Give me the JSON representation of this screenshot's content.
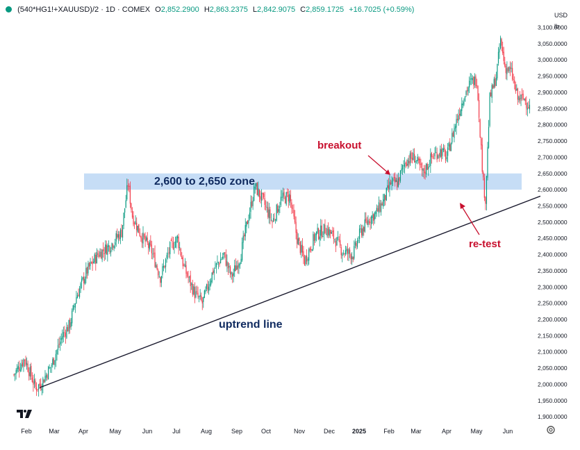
{
  "header": {
    "symbol": "(540*HG1!+XAUUSD)/2 · 1D · COMEX",
    "open_label": "O",
    "open": "2,852.2900",
    "high_label": "H",
    "high": "2,863.2375",
    "low_label": "L",
    "low": "2,842.9075",
    "close_label": "C",
    "close": "2,859.1725",
    "change": "+16.7025 (+0.59%)"
  },
  "scale": {
    "currency": "USD",
    "unit": "lb"
  },
  "colors": {
    "up": "#089981",
    "down": "#f23645",
    "annotation": "#c8102e",
    "zone": "#bcd7f5",
    "trendline": "#1a1a2e"
  },
  "chart_data": {
    "type": "candlestick",
    "ylim": [
      1880,
      3130
    ],
    "y_ticks": [
      1900,
      1950,
      2000,
      2050,
      2100,
      2150,
      2200,
      2250,
      2300,
      2350,
      2400,
      2450,
      2500,
      2550,
      2600,
      2650,
      2700,
      2750,
      2800,
      2850,
      2900,
      2950,
      3000,
      3050,
      3100
    ],
    "x_tick_labels": [
      "Feb",
      "Mar",
      "Apr",
      "May",
      "Jun",
      "Jul",
      "Aug",
      "Sep",
      "Oct",
      "Nov",
      "Dec",
      "2025",
      "Feb",
      "Mar",
      "Apr",
      "May",
      "Jun"
    ],
    "series": [
      {
        "values": [
          [
            0,
            2030
          ],
          [
            10,
            2080
          ],
          [
            20,
            1990
          ],
          [
            25,
            2000
          ],
          [
            35,
            2060
          ],
          [
            45,
            2150
          ],
          [
            52,
            2185
          ],
          [
            58,
            2270
          ],
          [
            68,
            2350
          ],
          [
            78,
            2400
          ],
          [
            90,
            2430
          ],
          [
            100,
            2470
          ],
          [
            106,
            2620
          ],
          [
            110,
            2520
          ],
          [
            118,
            2460
          ],
          [
            128,
            2410
          ],
          [
            136,
            2330
          ],
          [
            145,
            2420
          ],
          [
            152,
            2450
          ],
          [
            158,
            2360
          ],
          [
            168,
            2280
          ],
          [
            175,
            2250
          ],
          [
            185,
            2350
          ],
          [
            195,
            2400
          ],
          [
            202,
            2330
          ],
          [
            210,
            2390
          ],
          [
            218,
            2520
          ],
          [
            224,
            2610
          ],
          [
            232,
            2560
          ],
          [
            240,
            2500
          ],
          [
            248,
            2570
          ],
          [
            256,
            2580
          ],
          [
            263,
            2450
          ],
          [
            270,
            2380
          ],
          [
            280,
            2460
          ],
          [
            290,
            2480
          ],
          [
            298,
            2450
          ],
          [
            305,
            2410
          ],
          [
            315,
            2400
          ],
          [
            322,
            2470
          ],
          [
            330,
            2510
          ],
          [
            337,
            2530
          ],
          [
            344,
            2570
          ],
          [
            350,
            2620
          ],
          [
            356,
            2620
          ],
          [
            364,
            2690
          ],
          [
            372,
            2700
          ],
          [
            380,
            2650
          ],
          [
            388,
            2700
          ],
          [
            396,
            2720
          ],
          [
            402,
            2700
          ],
          [
            410,
            2800
          ],
          [
            418,
            2890
          ],
          [
            424,
            2930
          ],
          [
            430,
            2940
          ],
          [
            436,
            2620
          ],
          [
            438,
            2570
          ],
          [
            442,
            2880
          ],
          [
            448,
            2950
          ],
          [
            452,
            3060
          ],
          [
            456,
            2980
          ],
          [
            462,
            2960
          ],
          [
            468,
            2880
          ],
          [
            474,
            2880
          ],
          [
            480,
            2850
          ]
        ]
      }
    ],
    "zone": {
      "from": 2600,
      "to": 2650,
      "label": "2,600 to 2,650 zone"
    },
    "trendline": {
      "from": [
        24,
        1990
      ],
      "to": [
        489,
        2580
      ],
      "label": "uptrend line"
    },
    "annotations": [
      {
        "text": "breakout"
      },
      {
        "text": "re-test"
      }
    ]
  }
}
